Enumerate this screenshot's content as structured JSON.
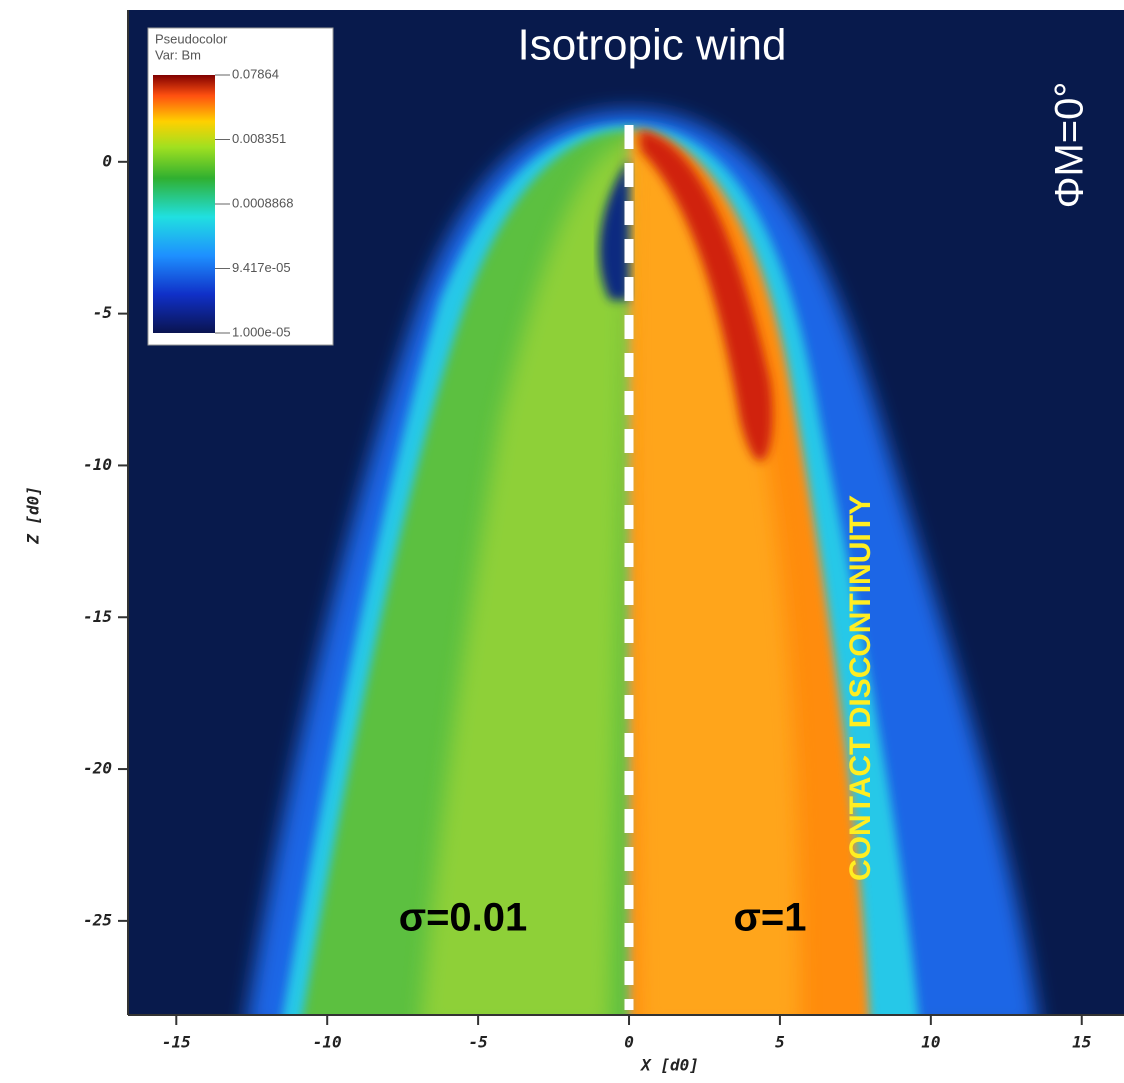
{
  "chart_data": {
    "type": "heatmap",
    "title": "Isotropic wind",
    "x_label": "X [d0]",
    "y_label": "Z [d0]",
    "xlim": [
      -16.6,
      16.4
    ],
    "ylim": [
      -28.1,
      5.0
    ],
    "xticks": [
      -15,
      -10,
      -5,
      0,
      5,
      10,
      15
    ],
    "yticks": [
      0,
      -5,
      -10,
      -15,
      -20,
      -25
    ],
    "annotations": [
      "ΦM=0°",
      "σ=0.01",
      "σ=1",
      "CONTACT DISCONTINUITY"
    ],
    "colorbar": {
      "title": "Pseudocolor",
      "variable": "Var: Bm",
      "log": true,
      "clim": [
        1e-05,
        0.07864
      ],
      "ticks": [
        0.07864,
        0.008351,
        0.0008868,
        {
          "value": 9.417e-05,
          "label": "9.417e-05"
        },
        {
          "value": 1e-05,
          "label": "1.000e-05"
        }
      ]
    }
  }
}
